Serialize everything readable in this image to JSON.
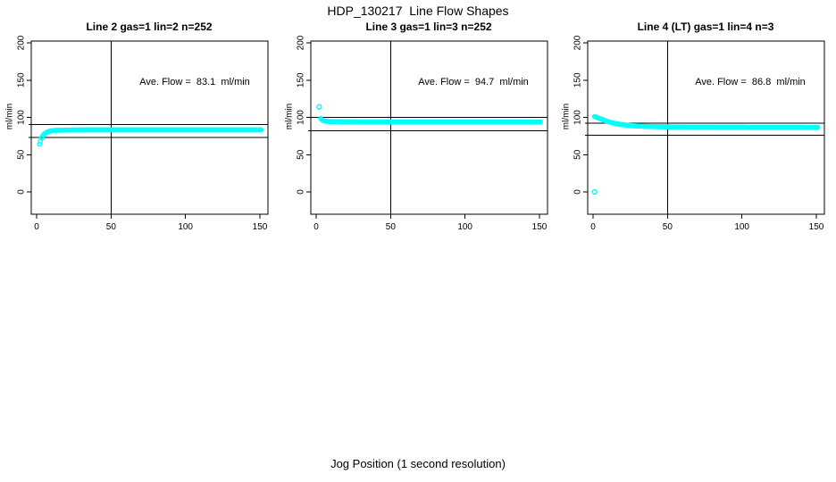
{
  "figure": {
    "title": "HDP_130217  Line Flow Shapes",
    "xlabel": "Jog Position (1 second resolution)",
    "background_color": "#ffffff",
    "axis_color": "#000000",
    "point_color": "#00FFFF"
  },
  "chart_data": [
    {
      "type": "scatter",
      "title": "Line 2 gas=1 lin=2 n=252",
      "annotation": "Ave. Flow =  83.1  ml/min",
      "ave_flow_ml_min": 83.1,
      "n": 252,
      "ylabel": "ml/min",
      "xlim": [
        0,
        150
      ],
      "ylim": [
        0,
        200
      ],
      "x_ticks": [
        "0",
        "50",
        "100",
        "150"
      ],
      "y_ticks": [
        "0",
        "50",
        "100",
        "150",
        "200"
      ],
      "vline_x": 50,
      "ref_lines": [
        90.5,
        73
      ],
      "outliers": [],
      "x_start": 2,
      "x_end": 151,
      "keypoints": [
        [
          2,
          64
        ],
        [
          3,
          71
        ],
        [
          4,
          75
        ],
        [
          5,
          77.5
        ],
        [
          6,
          79
        ],
        [
          7,
          80
        ],
        [
          8,
          81
        ],
        [
          10,
          82
        ],
        [
          12,
          82.5
        ],
        [
          15,
          82.8
        ],
        [
          20,
          83
        ],
        [
          25,
          83.1
        ],
        [
          30,
          83.2
        ],
        [
          40,
          83.2
        ],
        [
          60,
          83.2
        ],
        [
          80,
          83.2
        ],
        [
          100,
          83.2
        ],
        [
          120,
          83.2
        ],
        [
          151,
          83.2
        ]
      ]
    },
    {
      "type": "scatter",
      "title": "Line 3 gas=1 lin=3 n=252",
      "annotation": "Ave. Flow =  94.7  ml/min",
      "ave_flow_ml_min": 94.7,
      "n": 252,
      "ylabel": "ml/min",
      "xlim": [
        0,
        150
      ],
      "ylim": [
        0,
        200
      ],
      "x_ticks": [
        "0",
        "50",
        "100",
        "150"
      ],
      "y_ticks": [
        "0",
        "50",
        "100",
        "150",
        "200"
      ],
      "vline_x": 50,
      "ref_lines": [
        100,
        82
      ],
      "outliers": [
        [
          2,
          114
        ]
      ],
      "x_start": 3,
      "x_end": 151,
      "keypoints": [
        [
          3,
          98.5
        ],
        [
          4,
          96.5
        ],
        [
          5,
          95.5
        ],
        [
          6,
          95
        ],
        [
          8,
          94.6
        ],
        [
          10,
          94.4
        ],
        [
          15,
          94.2
        ],
        [
          20,
          94
        ],
        [
          30,
          93.9
        ],
        [
          50,
          93.8
        ],
        [
          80,
          93.8
        ],
        [
          110,
          93.8
        ],
        [
          151,
          93.8
        ]
      ]
    },
    {
      "type": "scatter",
      "title": "Line 4 (LT) gas=1 lin=4 n=3",
      "annotation": "Ave. Flow =  86.8  ml/min",
      "ave_flow_ml_min": 86.8,
      "n": 3,
      "ylabel": "ml/min",
      "xlim": [
        0,
        150
      ],
      "ylim": [
        0,
        200
      ],
      "x_ticks": [
        "0",
        "50",
        "100",
        "150"
      ],
      "y_ticks": [
        "0",
        "50",
        "100",
        "150",
        "200"
      ],
      "vline_x": 50,
      "ref_lines": [
        92,
        76
      ],
      "outliers": [
        [
          1,
          0
        ]
      ],
      "x_start": 1,
      "x_end": 151,
      "keypoints": [
        [
          1,
          101
        ],
        [
          2,
          100.5
        ],
        [
          3,
          99.7
        ],
        [
          4,
          98.8
        ],
        [
          5,
          98
        ],
        [
          6,
          97.2
        ],
        [
          7,
          96.4
        ],
        [
          8,
          95.7
        ],
        [
          10,
          94.3
        ],
        [
          12,
          93.2
        ],
        [
          14,
          92.2
        ],
        [
          16,
          91.4
        ],
        [
          18,
          90.7
        ],
        [
          20,
          90.1
        ],
        [
          23,
          89.4
        ],
        [
          26,
          88.9
        ],
        [
          30,
          88.4
        ],
        [
          35,
          88
        ],
        [
          40,
          87.7
        ],
        [
          50,
          87.3
        ],
        [
          60,
          87.1
        ],
        [
          80,
          86.9
        ],
        [
          100,
          86.8
        ],
        [
          120,
          86.7
        ],
        [
          151,
          86.6
        ]
      ]
    }
  ],
  "layout_hints": {
    "legend": "none",
    "grid": "off",
    "marker_shape": "open-circle",
    "marker_step_x": 0.6
  }
}
